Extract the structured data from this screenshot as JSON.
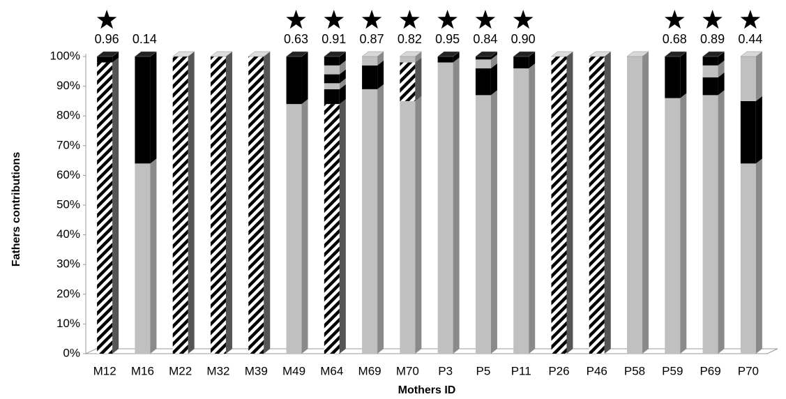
{
  "chart_data": {
    "type": "stacked-bar-3d",
    "y_label": "Fathers contributions",
    "x_label": "Mothers ID",
    "categories": [
      "M12",
      "M16",
      "M22",
      "M32",
      "M39",
      "M49",
      "M64",
      "M69",
      "M70",
      "P3",
      "P5",
      "P11",
      "P26",
      "P46",
      "P58",
      "P59",
      "P69",
      "P70"
    ],
    "stacks": [
      [
        {
          "fill": "hatch",
          "value": 98
        },
        {
          "fill": "#000000",
          "value": 2
        }
      ],
      [
        {
          "fill": "#c0c0c0",
          "value": 64
        },
        {
          "fill": "#000000",
          "value": 36
        }
      ],
      [
        {
          "fill": "hatch",
          "value": 100
        }
      ],
      [
        {
          "fill": "hatch",
          "value": 100
        }
      ],
      [
        {
          "fill": "hatch",
          "value": 100
        }
      ],
      [
        {
          "fill": "#c0c0c0",
          "value": 84
        },
        {
          "fill": "#000000",
          "value": 16
        }
      ],
      [
        {
          "fill": "hatch",
          "value": 84
        },
        {
          "fill": "#000000",
          "value": 5
        },
        {
          "fill": "#c0c0c0",
          "value": 2
        },
        {
          "fill": "#000000",
          "value": 3
        },
        {
          "fill": "#c0c0c0",
          "value": 3
        },
        {
          "fill": "#000000",
          "value": 3
        }
      ],
      [
        {
          "fill": "#c0c0c0",
          "value": 89
        },
        {
          "fill": "#000000",
          "value": 8
        },
        {
          "fill": "#c0c0c0",
          "value": 3
        }
      ],
      [
        {
          "fill": "#c0c0c0",
          "value": 85
        },
        {
          "fill": "hatch",
          "value": 13
        },
        {
          "fill": "#c0c0c0",
          "value": 2
        }
      ],
      [
        {
          "fill": "#c0c0c0",
          "value": 98
        },
        {
          "fill": "#000000",
          "value": 2
        }
      ],
      [
        {
          "fill": "#c0c0c0",
          "value": 87
        },
        {
          "fill": "#000000",
          "value": 9
        },
        {
          "fill": "#c0c0c0",
          "value": 3
        },
        {
          "fill": "#000000",
          "value": 1
        }
      ],
      [
        {
          "fill": "#c0c0c0",
          "value": 96
        },
        {
          "fill": "#000000",
          "value": 4
        }
      ],
      [
        {
          "fill": "hatch",
          "value": 100
        }
      ],
      [
        {
          "fill": "hatch",
          "value": 100
        }
      ],
      [
        {
          "fill": "#c0c0c0",
          "value": 100
        }
      ],
      [
        {
          "fill": "#c0c0c0",
          "value": 86
        },
        {
          "fill": "#000000",
          "value": 14
        }
      ],
      [
        {
          "fill": "#c0c0c0",
          "value": 87
        },
        {
          "fill": "#000000",
          "value": 6
        },
        {
          "fill": "#c0c0c0",
          "value": 4
        },
        {
          "fill": "#000000",
          "value": 3
        }
      ],
      [
        {
          "fill": "#c0c0c0",
          "value": 64
        },
        {
          "fill": "#000000",
          "value": 21
        },
        {
          "fill": "#c0c0c0",
          "value": 15
        }
      ]
    ],
    "annotations": [
      "0.96",
      "0.14",
      null,
      null,
      null,
      "0.63",
      "0.91",
      "0.87",
      "0.82",
      "0.95",
      "0.84",
      "0.90",
      null,
      null,
      null,
      "0.68",
      "0.89",
      "0.44"
    ],
    "stars": [
      true,
      false,
      false,
      false,
      false,
      true,
      true,
      true,
      true,
      true,
      true,
      true,
      false,
      false,
      false,
      true,
      true,
      true
    ],
    "ylim": [
      0,
      100
    ],
    "yticks": [
      {
        "value": 0,
        "label": "0%"
      },
      {
        "value": 10,
        "label": "10%"
      },
      {
        "value": 20,
        "label": "20%"
      },
      {
        "value": 30,
        "label": "30%"
      },
      {
        "value": 40,
        "label": "40%"
      },
      {
        "value": 50,
        "label": "50%"
      },
      {
        "value": 60,
        "label": "60%"
      },
      {
        "value": 70,
        "label": "70%"
      },
      {
        "value": 80,
        "label": "80%"
      },
      {
        "value": 90,
        "label": "90%"
      },
      {
        "value": 100,
        "label": "100%"
      }
    ]
  }
}
